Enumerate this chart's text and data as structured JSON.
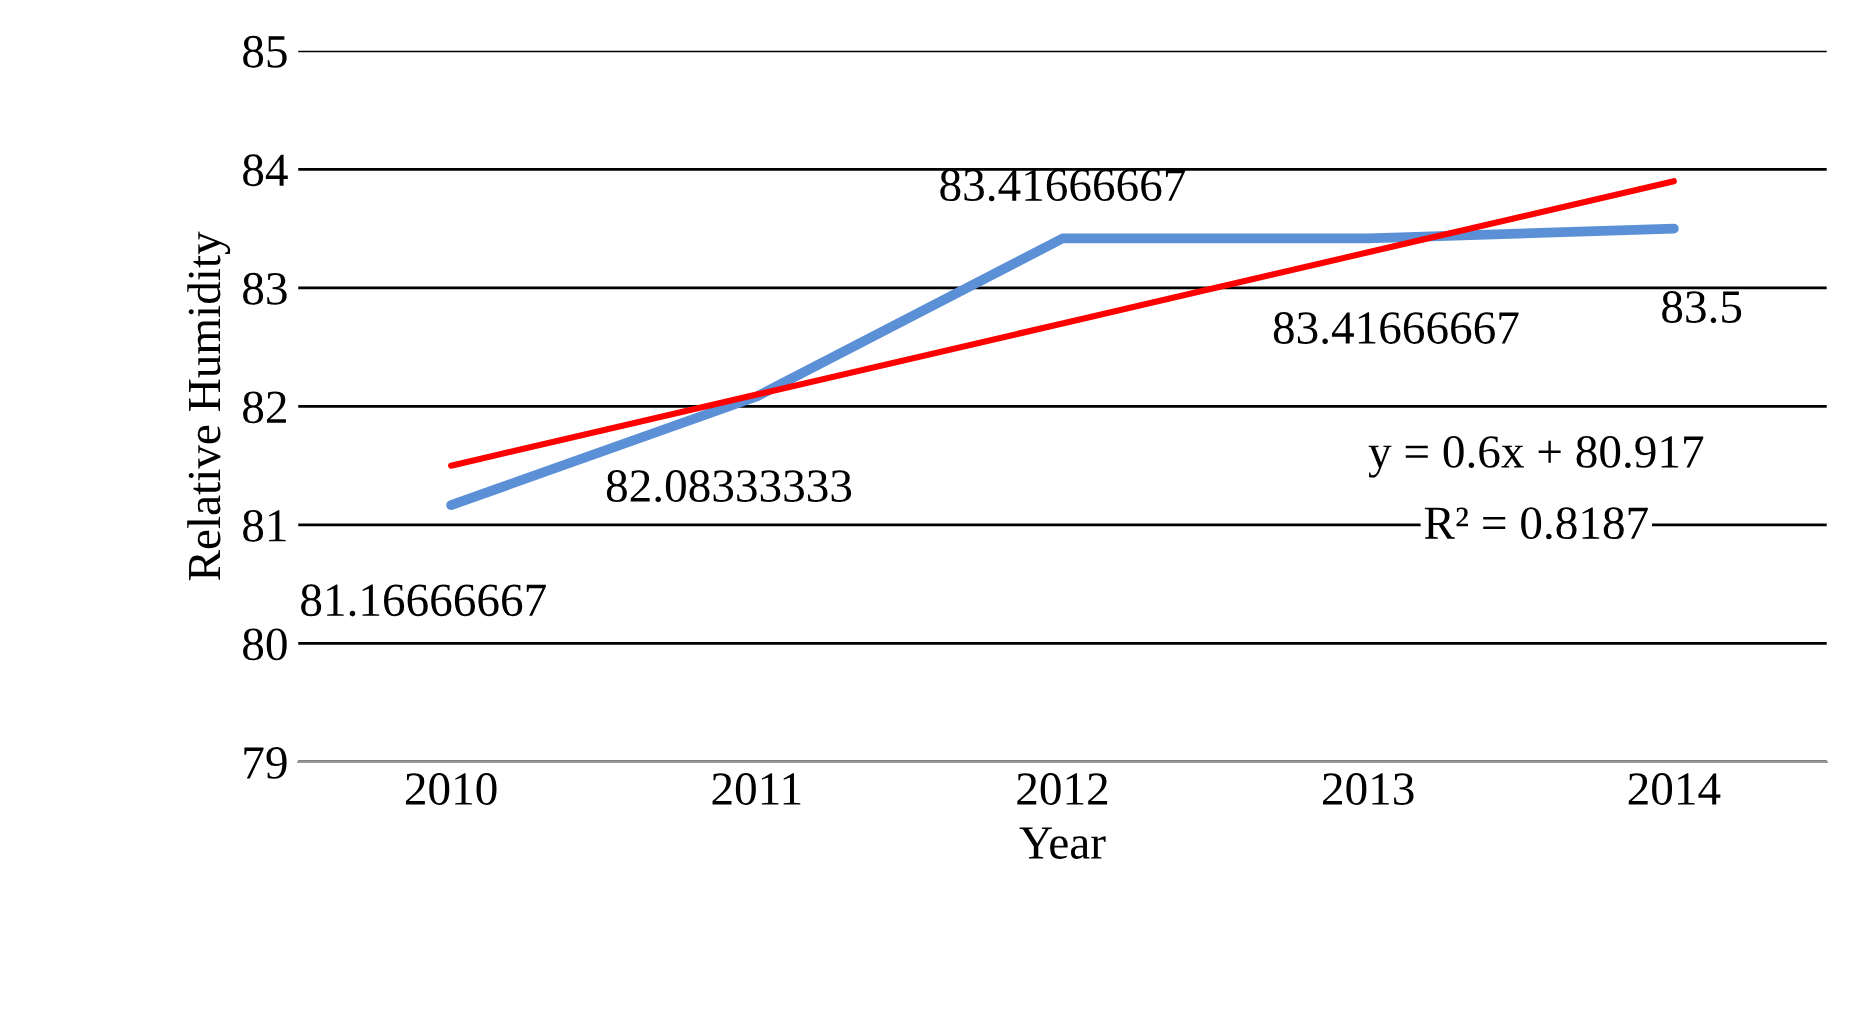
{
  "chart_data": {
    "type": "line",
    "xlabel": "Year",
    "ylabel": "Relative Humidity",
    "categories": [
      "2010",
      "2011",
      "2012",
      "2013",
      "2014"
    ],
    "series": [
      {
        "color": "#5b8fd6",
        "values": [
          81.16666667,
          82.08333333,
          83.41666667,
          83.41666667,
          83.5
        ],
        "value_labels": [
          "81.16666667",
          "82.08333333",
          "83.41666667",
          "83.41666667",
          "83.5"
        ]
      },
      {
        "type": "line",
        "color": "#ff0000",
        "values": [
          81.5,
          82.1,
          82.7,
          83.3,
          83.9
        ]
      }
    ],
    "annotations": [
      "y = 0.6x + 80.917",
      "R² = 0.8187"
    ],
    "ylim": [
      79,
      85
    ],
    "yticks": [
      79,
      80,
      81,
      82,
      83,
      84,
      85
    ],
    "grid": "y",
    "legend": false,
    "marker": "none",
    "line_style": "solid"
  }
}
